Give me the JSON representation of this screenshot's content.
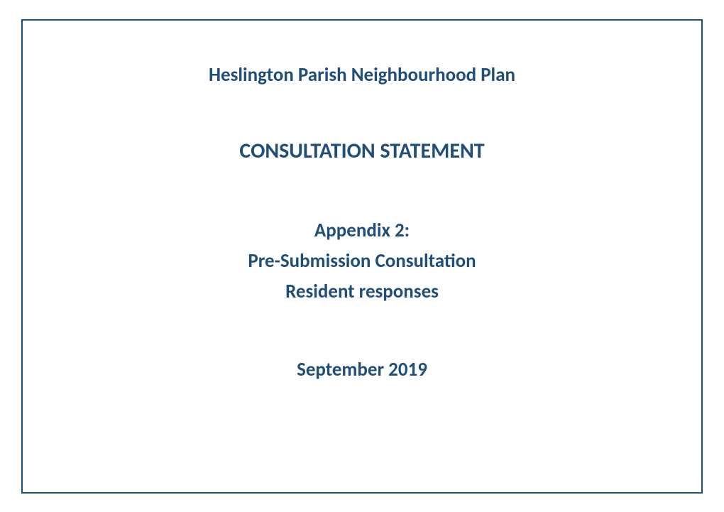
{
  "document": {
    "title": "Heslington Parish Neighbourhood Plan",
    "subtitle": "CONSULTATION STATEMENT",
    "appendix_label": "Appendix 2:",
    "appendix_line1": "Pre-Submission Consultation",
    "appendix_line2": "Resident responses",
    "date": "September 2019",
    "text_color": "#1f4e79",
    "border_color": "#1f4e79",
    "background_color": "#ffffff",
    "title_fontsize": 27,
    "subtitle_fontsize": 30,
    "body_fontsize": 27,
    "font_family": "Calibri",
    "font_weight": "bold",
    "border_width": 2
  }
}
